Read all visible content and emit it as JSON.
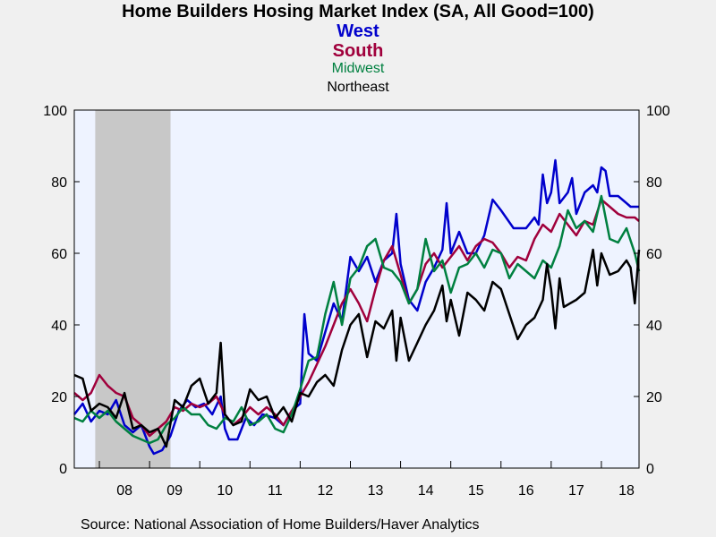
{
  "chart_data": {
    "type": "line",
    "title": "Home Builders Hosing Market Index (SA, All Good=100)",
    "source": "Source:  National Association of Home Builders/Haver Analytics",
    "ylim": [
      0,
      100
    ],
    "yticks": [
      "0",
      "20",
      "40",
      "60",
      "80",
      "100"
    ],
    "xlim": [
      2007.5,
      2018.75
    ],
    "xtick_labels": [
      "08",
      "09",
      "10",
      "11",
      "12",
      "13",
      "14",
      "15",
      "16",
      "17",
      "18"
    ],
    "recession": [
      2007.917,
      2009.417
    ],
    "legend_placement": "top-center",
    "grid": false,
    "series": [
      {
        "name": "West",
        "color": "#0000cc",
        "points": [
          [
            2007.5,
            15
          ],
          [
            2007.667,
            18
          ],
          [
            2007.833,
            13
          ],
          [
            2008.0,
            16
          ],
          [
            2008.167,
            15
          ],
          [
            2008.333,
            19
          ],
          [
            2008.5,
            12
          ],
          [
            2008.667,
            10
          ],
          [
            2008.833,
            12
          ],
          [
            2009.0,
            6
          ],
          [
            2009.083,
            4
          ],
          [
            2009.25,
            5
          ],
          [
            2009.417,
            9
          ],
          [
            2009.583,
            16
          ],
          [
            2009.75,
            19
          ],
          [
            2009.917,
            17
          ],
          [
            2010.083,
            18
          ],
          [
            2010.25,
            15
          ],
          [
            2010.417,
            20
          ],
          [
            2010.5,
            11
          ],
          [
            2010.583,
            8
          ],
          [
            2010.75,
            8
          ],
          [
            2010.917,
            14
          ],
          [
            2011.083,
            12
          ],
          [
            2011.25,
            15
          ],
          [
            2011.5,
            14
          ],
          [
            2011.667,
            12
          ],
          [
            2011.833,
            16
          ],
          [
            2012.0,
            18
          ],
          [
            2012.083,
            43
          ],
          [
            2012.167,
            32
          ],
          [
            2012.333,
            30
          ],
          [
            2012.5,
            38
          ],
          [
            2012.667,
            46
          ],
          [
            2012.833,
            41
          ],
          [
            2013.0,
            59
          ],
          [
            2013.167,
            55
          ],
          [
            2013.333,
            59
          ],
          [
            2013.5,
            52
          ],
          [
            2013.667,
            58
          ],
          [
            2013.833,
            60
          ],
          [
            2013.917,
            71
          ],
          [
            2014.0,
            57
          ],
          [
            2014.167,
            47
          ],
          [
            2014.333,
            44
          ],
          [
            2014.5,
            52
          ],
          [
            2014.667,
            56
          ],
          [
            2014.833,
            61
          ],
          [
            2014.917,
            74
          ],
          [
            2015.0,
            60
          ],
          [
            2015.167,
            66
          ],
          [
            2015.333,
            60
          ],
          [
            2015.5,
            60
          ],
          [
            2015.667,
            65
          ],
          [
            2015.833,
            75
          ],
          [
            2016.0,
            72
          ],
          [
            2016.25,
            67
          ],
          [
            2016.5,
            67
          ],
          [
            2016.667,
            70
          ],
          [
            2016.75,
            68
          ],
          [
            2016.833,
            82
          ],
          [
            2016.917,
            74
          ],
          [
            2017.0,
            77
          ],
          [
            2017.083,
            86
          ],
          [
            2017.167,
            74
          ],
          [
            2017.333,
            77
          ],
          [
            2017.417,
            81
          ],
          [
            2017.5,
            71
          ],
          [
            2017.667,
            77
          ],
          [
            2017.833,
            79
          ],
          [
            2017.917,
            77
          ],
          [
            2018.0,
            84
          ],
          [
            2018.083,
            83
          ],
          [
            2018.167,
            76
          ],
          [
            2018.333,
            76
          ],
          [
            2018.5,
            74
          ],
          [
            2018.583,
            73
          ],
          [
            2018.75,
            73
          ]
        ]
      },
      {
        "name": "South",
        "color": "#a0003c",
        "points": [
          [
            2007.5,
            21
          ],
          [
            2007.667,
            19
          ],
          [
            2007.833,
            21
          ],
          [
            2008.0,
            26
          ],
          [
            2008.167,
            23
          ],
          [
            2008.333,
            21
          ],
          [
            2008.5,
            20
          ],
          [
            2008.667,
            14
          ],
          [
            2008.833,
            12
          ],
          [
            2009.0,
            9
          ],
          [
            2009.167,
            11
          ],
          [
            2009.333,
            13
          ],
          [
            2009.5,
            17
          ],
          [
            2009.667,
            16
          ],
          [
            2009.833,
            18
          ],
          [
            2010.0,
            17
          ],
          [
            2010.167,
            18
          ],
          [
            2010.333,
            20
          ],
          [
            2010.5,
            15
          ],
          [
            2010.667,
            12
          ],
          [
            2010.833,
            14
          ],
          [
            2011.0,
            17
          ],
          [
            2011.167,
            15
          ],
          [
            2011.333,
            17
          ],
          [
            2011.5,
            15
          ],
          [
            2011.667,
            12
          ],
          [
            2011.833,
            16
          ],
          [
            2012.0,
            20
          ],
          [
            2012.167,
            24
          ],
          [
            2012.333,
            29
          ],
          [
            2012.5,
            34
          ],
          [
            2012.667,
            40
          ],
          [
            2012.833,
            46
          ],
          [
            2013.0,
            50
          ],
          [
            2013.167,
            46
          ],
          [
            2013.333,
            41
          ],
          [
            2013.5,
            50
          ],
          [
            2013.667,
            58
          ],
          [
            2013.833,
            62
          ],
          [
            2014.0,
            54
          ],
          [
            2014.167,
            46
          ],
          [
            2014.333,
            50
          ],
          [
            2014.5,
            57
          ],
          [
            2014.667,
            60
          ],
          [
            2014.833,
            56
          ],
          [
            2015.0,
            59
          ],
          [
            2015.167,
            62
          ],
          [
            2015.333,
            58
          ],
          [
            2015.5,
            62
          ],
          [
            2015.667,
            64
          ],
          [
            2015.833,
            63
          ],
          [
            2016.0,
            60
          ],
          [
            2016.167,
            56
          ],
          [
            2016.333,
            59
          ],
          [
            2016.5,
            58
          ],
          [
            2016.667,
            64
          ],
          [
            2016.833,
            68
          ],
          [
            2017.0,
            66
          ],
          [
            2017.167,
            71
          ],
          [
            2017.333,
            68
          ],
          [
            2017.5,
            65
          ],
          [
            2017.667,
            69
          ],
          [
            2017.833,
            68
          ],
          [
            2018.0,
            75
          ],
          [
            2018.167,
            73
          ],
          [
            2018.333,
            71
          ],
          [
            2018.5,
            70
          ],
          [
            2018.667,
            70
          ],
          [
            2018.75,
            69
          ]
        ]
      },
      {
        "name": "Midwest",
        "color": "#008040",
        "points": [
          [
            2007.5,
            14
          ],
          [
            2007.667,
            13
          ],
          [
            2007.833,
            16
          ],
          [
            2008.0,
            14
          ],
          [
            2008.167,
            16
          ],
          [
            2008.333,
            13
          ],
          [
            2008.5,
            11
          ],
          [
            2008.667,
            9
          ],
          [
            2008.833,
            8
          ],
          [
            2009.0,
            7
          ],
          [
            2009.167,
            8
          ],
          [
            2009.333,
            12
          ],
          [
            2009.5,
            14
          ],
          [
            2009.667,
            17
          ],
          [
            2009.833,
            15
          ],
          [
            2010.0,
            15
          ],
          [
            2010.167,
            12
          ],
          [
            2010.333,
            11
          ],
          [
            2010.5,
            14
          ],
          [
            2010.667,
            13
          ],
          [
            2010.833,
            17
          ],
          [
            2011.0,
            12
          ],
          [
            2011.167,
            13
          ],
          [
            2011.333,
            15
          ],
          [
            2011.5,
            11
          ],
          [
            2011.667,
            10
          ],
          [
            2011.833,
            15
          ],
          [
            2012.0,
            22
          ],
          [
            2012.167,
            30
          ],
          [
            2012.333,
            31
          ],
          [
            2012.5,
            43
          ],
          [
            2012.667,
            52
          ],
          [
            2012.833,
            40
          ],
          [
            2013.0,
            53
          ],
          [
            2013.167,
            56
          ],
          [
            2013.333,
            62
          ],
          [
            2013.5,
            64
          ],
          [
            2013.667,
            56
          ],
          [
            2013.833,
            55
          ],
          [
            2014.0,
            52
          ],
          [
            2014.167,
            46
          ],
          [
            2014.333,
            50
          ],
          [
            2014.5,
            64
          ],
          [
            2014.667,
            55
          ],
          [
            2014.833,
            58
          ],
          [
            2015.0,
            49
          ],
          [
            2015.167,
            56
          ],
          [
            2015.333,
            57
          ],
          [
            2015.5,
            60
          ],
          [
            2015.667,
            56
          ],
          [
            2015.833,
            61
          ],
          [
            2016.0,
            60
          ],
          [
            2016.167,
            53
          ],
          [
            2016.333,
            57
          ],
          [
            2016.5,
            55
          ],
          [
            2016.667,
            53
          ],
          [
            2016.833,
            58
          ],
          [
            2017.0,
            56
          ],
          [
            2017.167,
            62
          ],
          [
            2017.333,
            72
          ],
          [
            2017.5,
            67
          ],
          [
            2017.667,
            69
          ],
          [
            2017.833,
            66
          ],
          [
            2018.0,
            76
          ],
          [
            2018.167,
            64
          ],
          [
            2018.333,
            63
          ],
          [
            2018.5,
            67
          ],
          [
            2018.667,
            60
          ],
          [
            2018.75,
            55
          ]
        ]
      },
      {
        "name": "Northeast",
        "color": "#000000",
        "points": [
          [
            2007.5,
            26
          ],
          [
            2007.667,
            25
          ],
          [
            2007.833,
            16
          ],
          [
            2008.0,
            18
          ],
          [
            2008.167,
            17
          ],
          [
            2008.333,
            14
          ],
          [
            2008.5,
            21
          ],
          [
            2008.667,
            11
          ],
          [
            2008.833,
            12
          ],
          [
            2009.0,
            10
          ],
          [
            2009.167,
            11
          ],
          [
            2009.333,
            6
          ],
          [
            2009.5,
            19
          ],
          [
            2009.667,
            17
          ],
          [
            2009.833,
            23
          ],
          [
            2010.0,
            25
          ],
          [
            2010.167,
            18
          ],
          [
            2010.333,
            21
          ],
          [
            2010.417,
            35
          ],
          [
            2010.5,
            15
          ],
          [
            2010.667,
            12
          ],
          [
            2010.833,
            13
          ],
          [
            2011.0,
            22
          ],
          [
            2011.167,
            19
          ],
          [
            2011.333,
            20
          ],
          [
            2011.5,
            14
          ],
          [
            2011.667,
            17
          ],
          [
            2011.833,
            13
          ],
          [
            2012.0,
            21
          ],
          [
            2012.167,
            20
          ],
          [
            2012.333,
            24
          ],
          [
            2012.5,
            26
          ],
          [
            2012.667,
            23
          ],
          [
            2012.833,
            33
          ],
          [
            2013.0,
            40
          ],
          [
            2013.167,
            43
          ],
          [
            2013.333,
            31
          ],
          [
            2013.5,
            41
          ],
          [
            2013.667,
            39
          ],
          [
            2013.833,
            44
          ],
          [
            2013.917,
            30
          ],
          [
            2014.0,
            42
          ],
          [
            2014.167,
            30
          ],
          [
            2014.333,
            35
          ],
          [
            2014.5,
            40
          ],
          [
            2014.667,
            44
          ],
          [
            2014.833,
            51
          ],
          [
            2014.917,
            41
          ],
          [
            2015.0,
            47
          ],
          [
            2015.167,
            37
          ],
          [
            2015.333,
            49
          ],
          [
            2015.5,
            47
          ],
          [
            2015.667,
            44
          ],
          [
            2015.833,
            52
          ],
          [
            2016.0,
            50
          ],
          [
            2016.167,
            43
          ],
          [
            2016.333,
            36
          ],
          [
            2016.5,
            40
          ],
          [
            2016.667,
            42
          ],
          [
            2016.833,
            47
          ],
          [
            2016.917,
            57
          ],
          [
            2017.0,
            50
          ],
          [
            2017.083,
            39
          ],
          [
            2017.167,
            53
          ],
          [
            2017.25,
            45
          ],
          [
            2017.5,
            47
          ],
          [
            2017.667,
            49
          ],
          [
            2017.833,
            61
          ],
          [
            2017.917,
            51
          ],
          [
            2018.0,
            60
          ],
          [
            2018.167,
            54
          ],
          [
            2018.333,
            55
          ],
          [
            2018.5,
            58
          ],
          [
            2018.583,
            56
          ],
          [
            2018.667,
            46
          ],
          [
            2018.75,
            61
          ]
        ]
      }
    ]
  }
}
